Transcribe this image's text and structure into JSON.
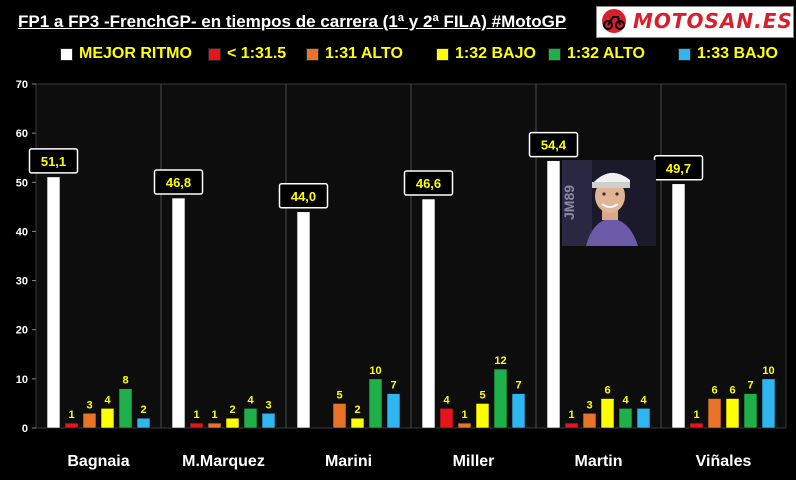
{
  "title": "FP1 a FP3 -FrenchGP- en tiempos de carrera (1ª y 2ª FILA) #MotoGP",
  "logo": {
    "text": "MOTOSAN.ES",
    "icon": "motorcycle-icon",
    "color": "#d8202c"
  },
  "photo": {
    "icon": "rider-photo-icon",
    "bib": "JM89"
  },
  "chart_data": {
    "type": "bar",
    "categories": [
      "Bagnaia",
      "M.Marquez",
      "Marini",
      "Miller",
      "Martin",
      "Viñales"
    ],
    "ylim": [
      0,
      70
    ],
    "yticks": [
      0,
      10,
      20,
      30,
      40,
      50,
      60,
      70
    ],
    "grid": false,
    "legend_position": "top",
    "series": [
      {
        "name": "MEJOR RITMO",
        "color": "#ffffff",
        "values": [
          51.1,
          46.8,
          44.0,
          46.6,
          54.4,
          49.7
        ],
        "labels": [
          "51,1",
          "46,8",
          "44,0",
          "46,6",
          "54,4",
          "49,7"
        ]
      },
      {
        "name": "< 1:31.5",
        "color": "#e8141c",
        "values": [
          1,
          1,
          0,
          4,
          1,
          1
        ],
        "labels": [
          "1",
          "1",
          "",
          "4",
          "1",
          "1"
        ]
      },
      {
        "name": "1:31 ALTO",
        "color": "#e8742a",
        "values": [
          3,
          1,
          5,
          1,
          3,
          6
        ],
        "labels": [
          "3",
          "1",
          "5",
          "1",
          "3",
          "6"
        ]
      },
      {
        "name": "1:32 BAJO",
        "color": "#ffff00",
        "values": [
          4,
          2,
          2,
          5,
          6,
          6
        ],
        "labels": [
          "4",
          "2",
          "2",
          "5",
          "6",
          "6"
        ]
      },
      {
        "name": "1:32 ALTO",
        "color": "#1fb04a",
        "values": [
          8,
          4,
          10,
          12,
          4,
          7
        ],
        "labels": [
          "8",
          "4",
          "10",
          "12",
          "4",
          "7"
        ]
      },
      {
        "name": "1:33 BAJO",
        "color": "#2eb6f0",
        "values": [
          2,
          3,
          7,
          7,
          4,
          10
        ],
        "labels": [
          "2",
          "3",
          "7",
          "7",
          "4",
          "10"
        ]
      }
    ]
  }
}
